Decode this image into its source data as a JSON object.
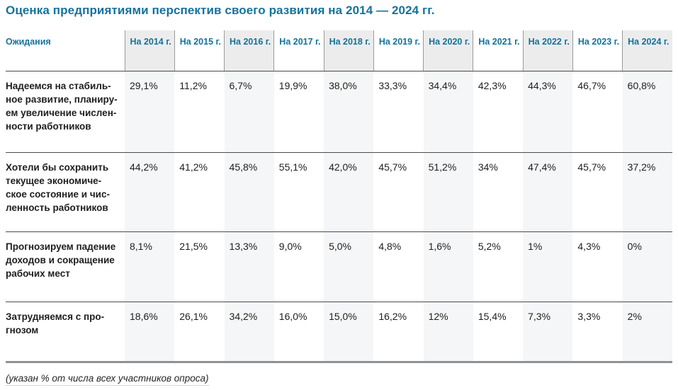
{
  "page": {
    "title": "Оценка предприятиями перспектив своего развития на 2014 — 2024 гг."
  },
  "chart_data": {
    "type": "table",
    "title": "Оценка предприятиями перспектив своего развития на 2014 — 2024 гг.",
    "columns": [
      "Ожидания",
      "На 2014 г.",
      "На 2015 г.",
      "На 2016 г.",
      "На 2017 г.",
      "На 2018 г.",
      "На 2019 г.",
      "На 2020 г.",
      "На 2021 г.",
      "На 2022 г.",
      "На 2023 г.",
      "На 2024 г."
    ],
    "rows": [
      {
        "label": "Надеемся на стабильное развитие, планируем увеличение численности работников",
        "values": [
          "29,1%",
          "11,2%",
          "6,7%",
          "19,9%",
          "38,0%",
          "33,3%",
          "34,4%",
          "42,3%",
          "44,3%",
          "46,7%",
          "60,8%"
        ]
      },
      {
        "label": "Хотели бы сохранить текущее экономическое состояние и численность работников",
        "values": [
          "44,2%",
          "41,2%",
          "45,8%",
          "55,1%",
          "42,0%",
          "45,7%",
          "51,2%",
          "34%",
          "47,4%",
          "45,7%",
          "37,2%"
        ]
      },
      {
        "label": "Прогнозируем падение доходов и сокращение рабочих мест",
        "values": [
          "8,1%",
          "21,5%",
          "13,3%",
          "9,0%",
          "5,0%",
          "4,8%",
          "1,6%",
          "5,2%",
          "1%",
          "4,3%",
          "0%"
        ]
      },
      {
        "label": "Затрудняемся с прогнозом",
        "values": [
          "18,6%",
          "26,1%",
          "34,2%",
          "16,0%",
          "15,0%",
          "16,2%",
          "12%",
          "15,4%",
          "7,3%",
          "3,3%",
          "2%"
        ]
      }
    ],
    "footnote": "(указан % от числа всех участников опроса)"
  },
  "table_display": {
    "row_labels_hyphenated": [
      "Надеемся на стабиль-\nное развитие, планиру-\nем увеличение числен-\nности работников",
      "Хотели бы сохранить\nтекущее экономиче-\nское состояние и чис-\nленность работников",
      "Прогнозируем падение\nдоходов и сокращение\nрабочих мест",
      "Затрудняемся с про-\nгнозом"
    ]
  },
  "footnote": "(указан % от числа всех участников опроса)",
  "colors": {
    "title_blue": "#15729c",
    "header_text_blue": "#15729c",
    "header_stripe_gray": "#ececec",
    "body_stripe_gray": "#f5f6f7",
    "row_separator": "#4a4a4a",
    "header_column_divider": "#9a9a9a",
    "table_bottom_border": "#909194",
    "body_text": "#1e1e1e"
  }
}
